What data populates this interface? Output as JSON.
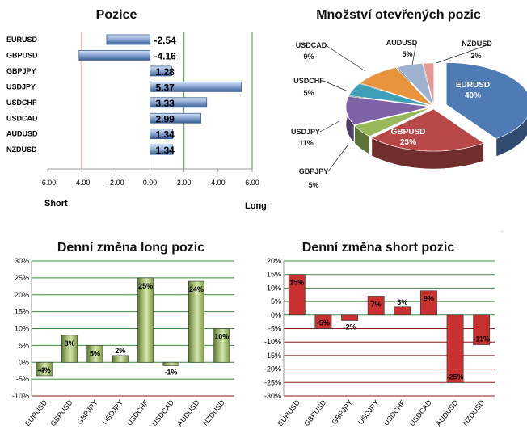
{
  "chart_data": [
    {
      "type": "bar",
      "orientation": "horizontal",
      "title": "Pozice",
      "categories": [
        "EURUSD",
        "GBPUSD",
        "GBPJPY",
        "USDJPY",
        "USDCHF",
        "USDCAD",
        "AUDUSD",
        "NZDUSD"
      ],
      "values": [
        -2.54,
        -4.16,
        1.28,
        5.37,
        3.33,
        2.99,
        1.34,
        1.34
      ],
      "value_labels": [
        "-2.54",
        "-4.16",
        "1.28",
        "5.37",
        "3.33",
        "2.99",
        "1.34",
        "1.34"
      ],
      "xlim": [
        -6,
        6
      ],
      "xticks": [
        "-6.00",
        "-4.00",
        "-2.00",
        "0.00",
        "2.00",
        "4.00",
        "6.00"
      ],
      "left_label": "Short",
      "right_label": "Long",
      "colors": {
        "bar": "#6d8fc0",
        "bar_dark": "#3a5f94",
        "short_line": "#a13a3a",
        "long_line": "#4d9a3a"
      }
    },
    {
      "type": "pie",
      "title": "Množství otevřených pozic",
      "slices": [
        {
          "label": "EURUSD",
          "value": 40,
          "pct": "40%",
          "color": "#4f7bb5"
        },
        {
          "label": "GBPUSD",
          "value": 23,
          "pct": "23%",
          "color": "#b84848"
        },
        {
          "label": "GBPJPY",
          "value": 5,
          "pct": "5%",
          "color": "#98b95a"
        },
        {
          "label": "USDJPY",
          "value": 11,
          "pct": "11%",
          "color": "#7e63a6"
        },
        {
          "label": "USDCHF",
          "value": 5,
          "pct": "5%",
          "color": "#3fa0b8"
        },
        {
          "label": "USDCAD",
          "value": 9,
          "pct": "9%",
          "color": "#e6933c"
        },
        {
          "label": "AUDUSD",
          "value": 5,
          "pct": "5%",
          "color": "#9cb0d0"
        },
        {
          "label": "NZDUSD",
          "value": 2,
          "pct": "2%",
          "color": "#e49896"
        }
      ]
    },
    {
      "type": "bar",
      "title": "Denní změna long pozic",
      "categories": [
        "EURUSD",
        "GBPUSD",
        "GBPJPY",
        "USDJPY",
        "USDCHF",
        "USDCAD",
        "AUDUSD",
        "NZDUSD"
      ],
      "values": [
        -4,
        8,
        5,
        2,
        25,
        -1,
        24,
        10
      ],
      "value_labels": [
        "-4%",
        "8%",
        "5%",
        "2%",
        "25%",
        "-1%",
        "24%",
        "10%"
      ],
      "ylim": [
        -10,
        30
      ],
      "yticks": [
        "30%",
        "25%",
        "20%",
        "15%",
        "10%",
        "5%",
        "0%",
        "-5%",
        "-10%"
      ],
      "colors": {
        "bar": "#7a9a3e",
        "bar_light": "#c9dba0",
        "grid": "#3c8c3c",
        "axis": "#8b1a1a"
      }
    },
    {
      "type": "bar",
      "title": "Denní změna short pozic",
      "categories": [
        "EURUSD",
        "GBPUSD",
        "GBPJPY",
        "USDJPY",
        "USDCHF",
        "USDCAD",
        "AUDUSD",
        "NZDUSD"
      ],
      "values": [
        15,
        -5,
        -2,
        7,
        3,
        9,
        -25,
        -11
      ],
      "value_labels": [
        "15%",
        "-5%",
        "-2%",
        "7%",
        "3%",
        "9%",
        "-25%",
        "-11%"
      ],
      "ylim": [
        -30,
        20
      ],
      "yticks": [
        "20%",
        "15%",
        "10%",
        "5%",
        "0%",
        "-5%",
        "-10%",
        "-15%",
        "-20%",
        "-25%",
        "-30%"
      ],
      "colors": {
        "bar": "#c93030",
        "grid_pos": "#3c8c3c",
        "grid_neg": "#8b1a1a"
      }
    }
  ]
}
